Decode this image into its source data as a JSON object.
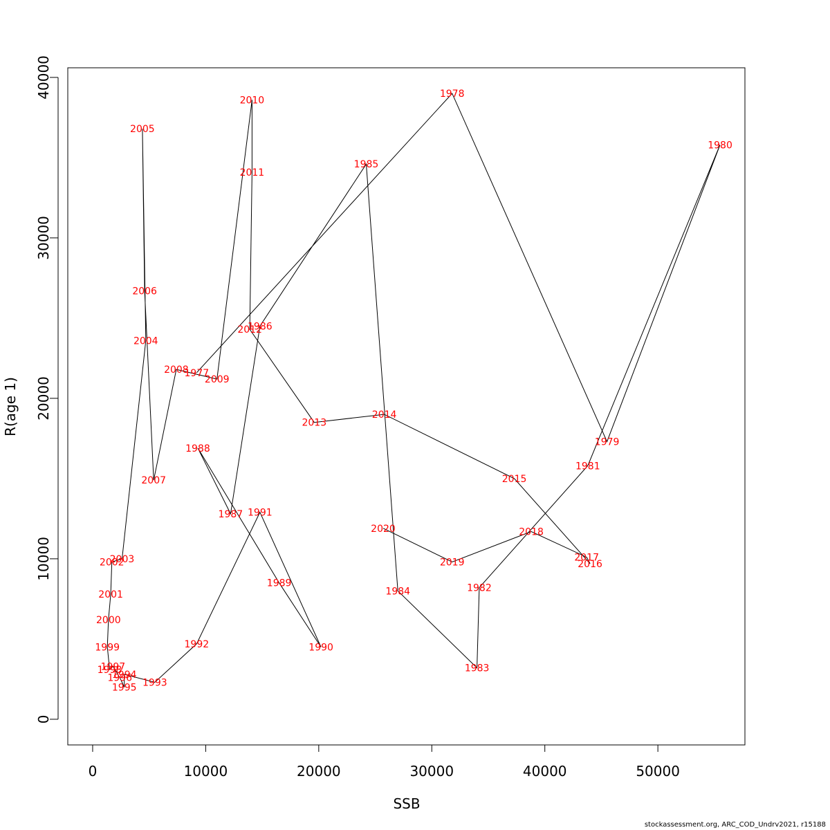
{
  "chart_data": {
    "type": "line",
    "title": "",
    "xlabel": "SSB",
    "ylabel": "R(age 1)",
    "xlim": [
      -2200,
      57700
    ],
    "ylim": [
      -1600,
      40600
    ],
    "x_ticks": [
      0,
      10000,
      20000,
      30000,
      40000,
      50000
    ],
    "x_tick_labels": [
      "0",
      "10000",
      "20000",
      "30000",
      "40000",
      "50000"
    ],
    "y_ticks": [
      0,
      10000,
      20000,
      30000,
      40000
    ],
    "y_tick_labels": [
      "0",
      "10000",
      "20000",
      "30000",
      "40000"
    ],
    "grid": false,
    "line_color": "#000000",
    "label_color": "#ff0000",
    "points": [
      {
        "year": "1977",
        "x": 9200,
        "y": 21600
      },
      {
        "year": "1978",
        "x": 31800,
        "y": 39000
      },
      {
        "year": "1979",
        "x": 45500,
        "y": 17300
      },
      {
        "year": "1980",
        "x": 55500,
        "y": 35800
      },
      {
        "year": "1981",
        "x": 43800,
        "y": 15800
      },
      {
        "year": "1982",
        "x": 34200,
        "y": 8200
      },
      {
        "year": "1983",
        "x": 34000,
        "y": 3200
      },
      {
        "year": "1984",
        "x": 27000,
        "y": 8000
      },
      {
        "year": "1985",
        "x": 24200,
        "y": 34600
      },
      {
        "year": "1986",
        "x": 14800,
        "y": 24500
      },
      {
        "year": "1987",
        "x": 12200,
        "y": 12800
      },
      {
        "year": "1988",
        "x": 9300,
        "y": 16900
      },
      {
        "year": "1989",
        "x": 16500,
        "y": 8500
      },
      {
        "year": "1990",
        "x": 20200,
        "y": 4500
      },
      {
        "year": "1991",
        "x": 14800,
        "y": 12900
      },
      {
        "year": "1992",
        "x": 9200,
        "y": 4700
      },
      {
        "year": "1993",
        "x": 5500,
        "y": 2300
      },
      {
        "year": "1994",
        "x": 2800,
        "y": 2800
      },
      {
        "year": "1995",
        "x": 2800,
        "y": 2000
      },
      {
        "year": "1996",
        "x": 2400,
        "y": 2600
      },
      {
        "year": "1997",
        "x": 1800,
        "y": 3300
      },
      {
        "year": "1998",
        "x": 1500,
        "y": 3100
      },
      {
        "year": "1999",
        "x": 1300,
        "y": 4500
      },
      {
        "year": "2000",
        "x": 1400,
        "y": 6200
      },
      {
        "year": "2001",
        "x": 1600,
        "y": 7800
      },
      {
        "year": "2002",
        "x": 1700,
        "y": 9800
      },
      {
        "year": "2003",
        "x": 2600,
        "y": 10000
      },
      {
        "year": "2004",
        "x": 4700,
        "y": 23600
      },
      {
        "year": "2005",
        "x": 4400,
        "y": 36800
      },
      {
        "year": "2006",
        "x": 4600,
        "y": 26700
      },
      {
        "year": "2007",
        "x": 5400,
        "y": 14900
      },
      {
        "year": "2008",
        "x": 7400,
        "y": 21800
      },
      {
        "year": "2009",
        "x": 11000,
        "y": 21200
      },
      {
        "year": "2010",
        "x": 14100,
        "y": 38600
      },
      {
        "year": "2011",
        "x": 14100,
        "y": 34100
      },
      {
        "year": "2012",
        "x": 13900,
        "y": 24300
      },
      {
        "year": "2013",
        "x": 19600,
        "y": 18500
      },
      {
        "year": "2014",
        "x": 25800,
        "y": 19000
      },
      {
        "year": "2015",
        "x": 37300,
        "y": 15000
      },
      {
        "year": "2016",
        "x": 44000,
        "y": 9700
      },
      {
        "year": "2017",
        "x": 43700,
        "y": 10100
      },
      {
        "year": "2018",
        "x": 38800,
        "y": 11700
      },
      {
        "year": "2019",
        "x": 31800,
        "y": 9800
      },
      {
        "year": "2020",
        "x": 25700,
        "y": 11900
      }
    ]
  },
  "footer": {
    "text": "stockassessment.org, ARC_COD_Undrv2021, r15188"
  }
}
